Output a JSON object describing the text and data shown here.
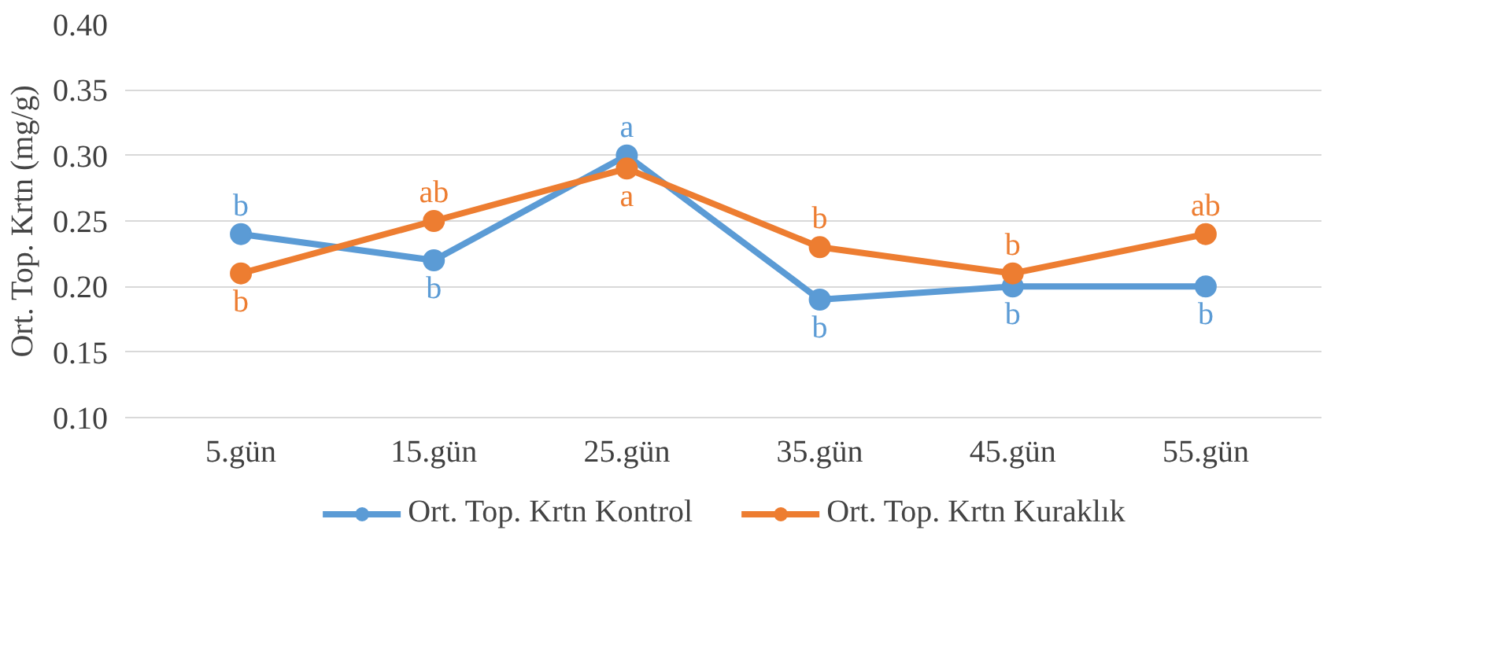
{
  "chart_data": {
    "type": "line",
    "ylabel": "Ort. Top. Krtn (mg/g)",
    "categories": [
      "5.gün",
      "15.gün",
      "25.gün",
      "35.gün",
      "45.gün",
      "55.gün"
    ],
    "series": [
      {
        "name": "Ort. Top. Krtn Kontrol",
        "color": "#5b9bd5",
        "values": [
          0.24,
          0.22,
          0.3,
          0.19,
          0.2,
          0.2
        ],
        "value_labels": [
          "b",
          "b",
          "a",
          "b",
          "b",
          "b"
        ]
      },
      {
        "name": "Ort. Top. Krtn Kuraklık",
        "color": "#ed7d31",
        "values": [
          0.21,
          0.25,
          0.29,
          0.23,
          0.21,
          0.24
        ],
        "value_labels": [
          "b",
          "ab",
          "a",
          "b",
          "b",
          "ab"
        ]
      }
    ],
    "ylim": [
      0.1,
      0.4
    ],
    "yticks": [
      {
        "value": 0.1,
        "label": "0.10"
      },
      {
        "value": 0.15,
        "label": "0.15"
      },
      {
        "value": 0.2,
        "label": "0.20"
      },
      {
        "value": 0.25,
        "label": "0.25"
      },
      {
        "value": 0.3,
        "label": "0.30"
      },
      {
        "value": 0.35,
        "label": "0.35"
      },
      {
        "value": 0.4,
        "label": "0.40"
      }
    ],
    "grid": "y",
    "legend": "bottom",
    "marker": "circle",
    "line_style": "solid"
  }
}
